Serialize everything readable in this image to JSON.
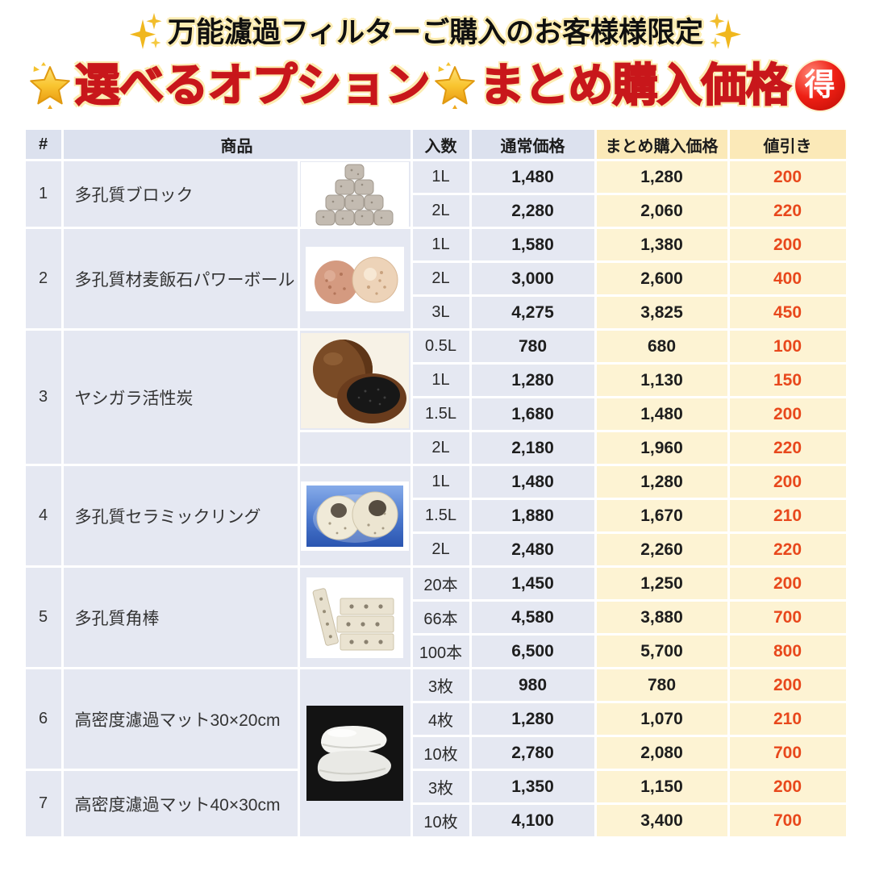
{
  "header": {
    "subtitle": "万能濾過フィルターご購入のお客様様限定",
    "title_part1": "選べるオプション",
    "title_part2": "まとめ購入価格",
    "badge": "得",
    "icons": [
      "sparkles-icon",
      "glowing-star-icon",
      "bargain-badge-icon"
    ]
  },
  "colors": {
    "title_red": "#c8171b",
    "halo_yellow": "#fcecb2",
    "discount_orange": "#e8481c",
    "header_gray": "#dce1ee",
    "header_cream": "#fbe9b8",
    "row_gray": "#e5e8f2",
    "row_cream": "#fdf3d3",
    "gold": "#f2b61c"
  },
  "table": {
    "columns": [
      "#",
      "商品",
      "入数",
      "通常価格",
      "まとめ購入価格",
      "値引き"
    ],
    "products": [
      {
        "num": "1",
        "name": "多孔質ブロック",
        "photo": "porous-blocks",
        "variants": [
          {
            "qty": "1L",
            "normal": "1,480",
            "bundle": "1,280",
            "discount": "200"
          },
          {
            "qty": "2L",
            "normal": "2,280",
            "bundle": "2,060",
            "discount": "220"
          }
        ]
      },
      {
        "num": "2",
        "name": "多孔質材麦飯石パワーボール",
        "photo": "power-balls",
        "variants": [
          {
            "qty": "1L",
            "normal": "1,580",
            "bundle": "1,380",
            "discount": "200"
          },
          {
            "qty": "2L",
            "normal": "3,000",
            "bundle": "2,600",
            "discount": "400"
          },
          {
            "qty": "3L",
            "normal": "4,275",
            "bundle": "3,825",
            "discount": "450"
          }
        ]
      },
      {
        "num": "3",
        "name": "ヤシガラ活性炭",
        "photo": "coconut-carbon",
        "photo_span": 3,
        "variants": [
          {
            "qty": "0.5L",
            "normal": "780",
            "bundle": "680",
            "discount": "100"
          },
          {
            "qty": "1L",
            "normal": "1,280",
            "bundle": "1,130",
            "discount": "150"
          },
          {
            "qty": "1.5L",
            "normal": "1,680",
            "bundle": "1,480",
            "discount": "200"
          },
          {
            "qty": "2L",
            "normal": "2,180",
            "bundle": "1,960",
            "discount": "220"
          }
        ]
      },
      {
        "num": "4",
        "name": "多孔質セラミックリング",
        "photo": "ceramic-rings",
        "variants": [
          {
            "qty": "1L",
            "normal": "1,480",
            "bundle": "1,280",
            "discount": "200"
          },
          {
            "qty": "1.5L",
            "normal": "1,880",
            "bundle": "1,670",
            "discount": "210"
          },
          {
            "qty": "2L",
            "normal": "2,480",
            "bundle": "2,260",
            "discount": "220"
          }
        ]
      },
      {
        "num": "5",
        "name": "多孔質角棒",
        "photo": "square-rods",
        "variants": [
          {
            "qty": "20本",
            "normal": "1,450",
            "bundle": "1,250",
            "discount": "200"
          },
          {
            "qty": "66本",
            "normal": "4,580",
            "bundle": "3,880",
            "discount": "700"
          },
          {
            "qty": "100本",
            "normal": "6,500",
            "bundle": "5,700",
            "discount": "800"
          }
        ]
      },
      {
        "num": "6",
        "name": "高密度濾過マット30×20cm",
        "photo": "filter-mat",
        "photo_span": 5,
        "variants": [
          {
            "qty": "3枚",
            "normal": "980",
            "bundle": "780",
            "discount": "200"
          },
          {
            "qty": "4枚",
            "normal": "1,280",
            "bundle": "1,070",
            "discount": "210"
          },
          {
            "qty": "10枚",
            "normal": "2,780",
            "bundle": "2,080",
            "discount": "700"
          }
        ]
      },
      {
        "num": "7",
        "name": "高密度濾過マット40×30cm",
        "photo": "filter-mat",
        "photo_span": 0,
        "variants": [
          {
            "qty": "3枚",
            "normal": "1,350",
            "bundle": "1,150",
            "discount": "200"
          },
          {
            "qty": "10枚",
            "normal": "4,100",
            "bundle": "3,400",
            "discount": "700"
          }
        ]
      }
    ]
  }
}
